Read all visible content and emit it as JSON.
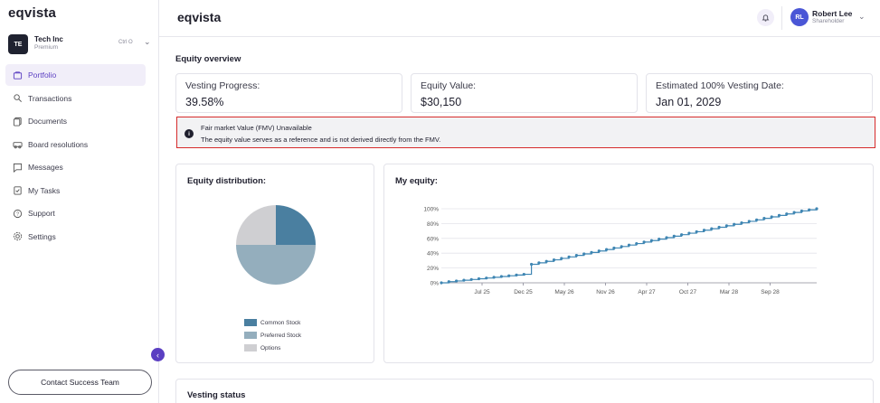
{
  "sidebar": {
    "logo": "eqvista",
    "company": {
      "initials": "TE",
      "name": "Tech Inc",
      "plan": "Premium",
      "shortcut": "Ctrl O"
    },
    "items": [
      {
        "key": "portfolio",
        "label": "Portfolio",
        "icon": "portfolio-icon",
        "active": true
      },
      {
        "key": "transactions",
        "label": "Transactions",
        "icon": "transactions-icon",
        "active": false
      },
      {
        "key": "documents",
        "label": "Documents",
        "icon": "documents-icon",
        "active": false
      },
      {
        "key": "board-resolutions",
        "label": "Board resolutions",
        "icon": "board-icon",
        "active": false
      },
      {
        "key": "messages",
        "label": "Messages",
        "icon": "messages-icon",
        "active": false
      },
      {
        "key": "my-tasks",
        "label": "My Tasks",
        "icon": "tasks-icon",
        "active": false
      },
      {
        "key": "support",
        "label": "Support",
        "icon": "support-icon",
        "active": false
      },
      {
        "key": "settings",
        "label": "Settings",
        "icon": "settings-icon",
        "active": false
      }
    ],
    "contact_label": "Contact Success Team"
  },
  "header": {
    "title": "eqvista",
    "user": {
      "initials": "RL",
      "name": "Robert Lee",
      "role": "Shareholder"
    }
  },
  "overview": {
    "title": "Equity overview",
    "stats": [
      {
        "label": "Vesting Progress:",
        "value": "39.58%"
      },
      {
        "label": "Equity Value:",
        "value": "$30,150"
      },
      {
        "label": "Estimated 100% Vesting Date:",
        "value": "Jan 01, 2029"
      }
    ]
  },
  "fmv_notice": {
    "title": "Fair market Value (FMV) Unavailable",
    "text": "The equity value serves as a reference and is not derived directly from the FMV."
  },
  "distribution": {
    "title": "Equity distribution:",
    "chart_data": {
      "type": "pie",
      "labels": [
        "Common Stock",
        "Preferred Stock",
        "Options"
      ],
      "values": [
        25,
        50,
        25
      ],
      "colors": [
        "#4a7fa0",
        "#94aebd",
        "#cfcfd2"
      ]
    }
  },
  "my_equity": {
    "title": "My equity:",
    "chart_data": {
      "type": "line",
      "x_ticks": [
        "Jul 25",
        "Dec 25",
        "May 26",
        "Nov 26",
        "Apr 27",
        "Oct 27",
        "Mar 28",
        "Sep 28"
      ],
      "y_ticks": [
        "0%",
        "20%",
        "40%",
        "60%",
        "80%",
        "100%"
      ],
      "ylim": [
        0,
        100
      ],
      "color": "#3f86b3",
      "series": [
        {
          "values": [
            0,
            1.5,
            2.5,
            3.5,
            4.5,
            5.5,
            6.5,
            7.5,
            8.5,
            9.5,
            10.5,
            11.5,
            25,
            27,
            29,
            31,
            33,
            35,
            37,
            39,
            41,
            43,
            45,
            47,
            49,
            51,
            53,
            55,
            57,
            59,
            61,
            63,
            65,
            67,
            69,
            71,
            73,
            75,
            77,
            79,
            81,
            83,
            85,
            87,
            89,
            91,
            93,
            95,
            97,
            98.5,
            100
          ]
        }
      ]
    }
  },
  "vesting_status": {
    "title": "Vesting status"
  }
}
